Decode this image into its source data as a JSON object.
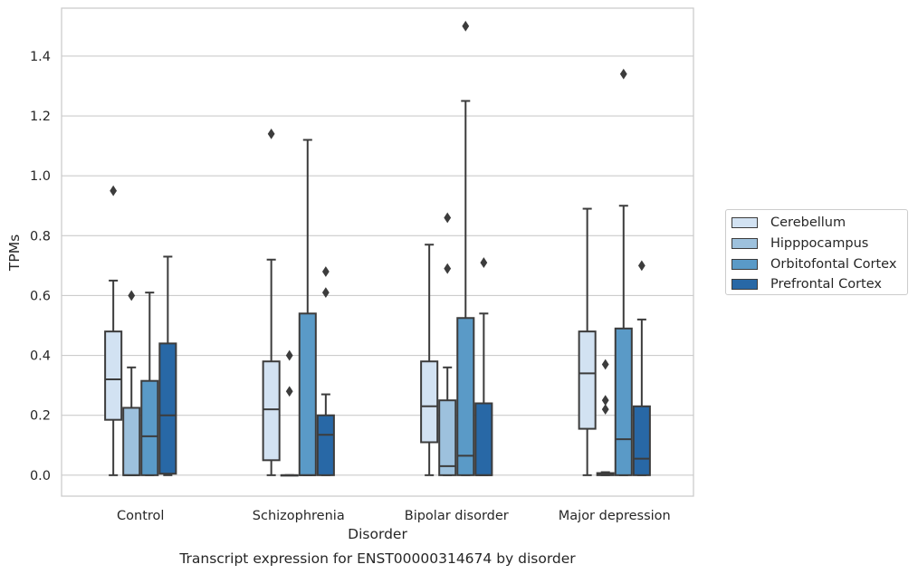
{
  "chart_data": {
    "type": "box",
    "title": "Transcript expression for ENST00000314674 by disorder",
    "xlabel": "Disorder",
    "ylabel": "TPMs",
    "ylim": [
      -0.07,
      1.56
    ],
    "yticks": [
      "0.0",
      "0.2",
      "0.4",
      "0.6",
      "0.8",
      "1.0",
      "1.2",
      "1.4"
    ],
    "ytick_values": [
      0.0,
      0.2,
      0.4,
      0.6,
      0.8,
      1.0,
      1.2,
      1.4
    ],
    "categories": [
      "Control",
      "Schizophrenia",
      "Bipolar disorder",
      "Major depression"
    ],
    "grid": true,
    "legend_position": "right, outside plot",
    "series": [
      {
        "name": "Cerebellum",
        "color": "#d2e2f2",
        "boxes": [
          {
            "whislo": 0.0,
            "q1": 0.185,
            "med": 0.32,
            "q3": 0.48,
            "whishi": 0.65,
            "fliers": [
              0.95
            ]
          },
          {
            "whislo": 0.0,
            "q1": 0.05,
            "med": 0.22,
            "q3": 0.38,
            "whishi": 0.72,
            "fliers": [
              1.14
            ]
          },
          {
            "whislo": 0.0,
            "q1": 0.11,
            "med": 0.23,
            "q3": 0.38,
            "whishi": 0.77,
            "fliers": []
          },
          {
            "whislo": 0.0,
            "q1": 0.155,
            "med": 0.34,
            "q3": 0.48,
            "whishi": 0.89,
            "fliers": []
          }
        ]
      },
      {
        "name": "Hipppocampus",
        "color": "#9dc1dd",
        "boxes": [
          {
            "whislo": 0.0,
            "q1": 0.0,
            "med": 0.0,
            "q3": 0.225,
            "whishi": 0.36,
            "fliers": [
              0.6
            ]
          },
          {
            "whislo": 0.0,
            "q1": 0.0,
            "med": 0.0,
            "q3": 0.0,
            "whishi": 0.0,
            "fliers": [
              0.4,
              0.28
            ]
          },
          {
            "whislo": 0.0,
            "q1": 0.0,
            "med": 0.03,
            "q3": 0.25,
            "whishi": 0.36,
            "fliers": [
              0.86,
              0.69
            ]
          },
          {
            "whislo": 0.0,
            "q1": 0.0,
            "med": 0.003,
            "q3": 0.007,
            "whishi": 0.01,
            "fliers": [
              0.37,
              0.25,
              0.22
            ]
          }
        ]
      },
      {
        "name": "Orbitofontal Cortex",
        "color": "#5a9ac7",
        "boxes": [
          {
            "whislo": 0.0,
            "q1": 0.0,
            "med": 0.13,
            "q3": 0.315,
            "whishi": 0.61,
            "fliers": []
          },
          {
            "whislo": 0.0,
            "q1": 0.0,
            "med": 0.0,
            "q3": 0.54,
            "whishi": 1.12,
            "fliers": []
          },
          {
            "whislo": 0.0,
            "q1": 0.0,
            "med": 0.065,
            "q3": 0.525,
            "whishi": 1.25,
            "fliers": [
              1.5
            ]
          },
          {
            "whislo": 0.0,
            "q1": 0.0,
            "med": 0.12,
            "q3": 0.49,
            "whishi": 0.9,
            "fliers": [
              1.34
            ]
          }
        ]
      },
      {
        "name": "Prefrontal Cortex",
        "color": "#2868a6",
        "boxes": [
          {
            "whislo": 0.0,
            "q1": 0.005,
            "med": 0.2,
            "q3": 0.44,
            "whishi": 0.73,
            "fliers": []
          },
          {
            "whislo": 0.0,
            "q1": 0.0,
            "med": 0.135,
            "q3": 0.2,
            "whishi": 0.27,
            "fliers": [
              0.68,
              0.61
            ]
          },
          {
            "whislo": 0.0,
            "q1": 0.0,
            "med": 0.0,
            "q3": 0.24,
            "whishi": 0.54,
            "fliers": [
              0.71
            ]
          },
          {
            "whislo": 0.0,
            "q1": 0.0,
            "med": 0.055,
            "q3": 0.23,
            "whishi": 0.52,
            "fliers": [
              0.7
            ]
          }
        ]
      }
    ]
  }
}
